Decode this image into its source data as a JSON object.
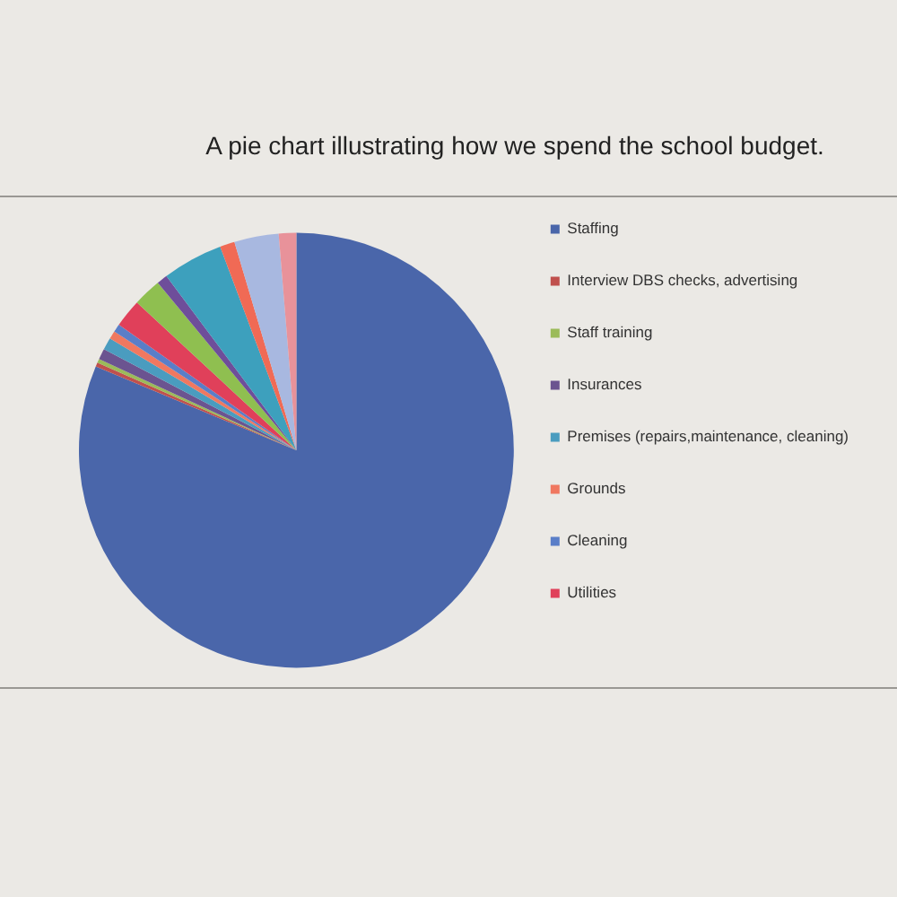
{
  "chart_data": {
    "type": "pie",
    "title": "A pie chart illustrating how we spend the school budget.",
    "categories": [
      "Staffing",
      "Interview DBS checks, advertising",
      "Staff training",
      "Insurances",
      "Premises (repairs,maintenance, cleaning)",
      "Grounds",
      "Cleaning",
      "Utilities",
      null,
      null,
      null,
      null,
      null,
      null
    ],
    "values": [
      81.3,
      0.3,
      0.3,
      0.8,
      0.9,
      0.6,
      0.6,
      2.1,
      2.1,
      0.8,
      4.5,
      1.1,
      3.3,
      1.3
    ],
    "colors": [
      "#4a66aa",
      "#c0504d",
      "#9bbb59",
      "#6b5490",
      "#4a9cbf",
      "#f07860",
      "#5a7ec8",
      "#e0405a",
      "#8fbf50",
      "#6e4e9a",
      "#3da0bd",
      "#f06a55",
      "#a8b8e0",
      "#e8929a"
    ],
    "legend": "right"
  }
}
